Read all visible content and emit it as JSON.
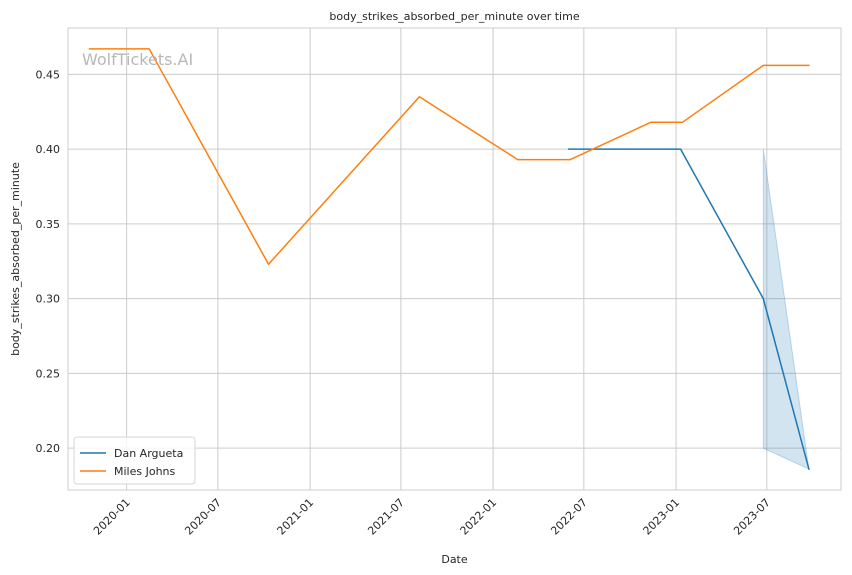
{
  "chart_data": {
    "type": "line",
    "title": "body_strikes_absorbed_per_minute over time",
    "xlabel": "Date",
    "ylabel": "body_strikes_absorbed_per_minute",
    "watermark": "WolfTickets.AI",
    "xlim": [
      "2019-09-06",
      "2023-11-26"
    ],
    "ylim": [
      0.172,
      0.481
    ],
    "x_ticks": [
      "2020-01",
      "2020-07",
      "2021-01",
      "2021-07",
      "2022-01",
      "2022-07",
      "2023-01",
      "2023-07"
    ],
    "y_ticks": [
      0.2,
      0.25,
      0.3,
      0.35,
      0.4,
      0.45
    ],
    "y_tick_labels": [
      "0.20",
      "0.25",
      "0.30",
      "0.35",
      "0.40",
      "0.45"
    ],
    "grid": true,
    "legend_position": "lower-left",
    "series": [
      {
        "name": "Dan Argueta",
        "color": "#1f77b4",
        "points": [
          {
            "x": "2022-06-01",
            "y": 0.4
          },
          {
            "x": "2023-01-10",
            "y": 0.4
          },
          {
            "x": "2023-06-24",
            "y": 0.3
          },
          {
            "x": "2023-09-23",
            "y": 0.186
          }
        ],
        "band": [
          {
            "x": "2023-06-24",
            "low": 0.2,
            "high": 0.4
          },
          {
            "x": "2023-09-23",
            "low": 0.186,
            "high": 0.186
          }
        ]
      },
      {
        "name": "Miles Johns",
        "color": "#ff7f0e",
        "points": [
          {
            "x": "2019-10-19",
            "y": 0.467
          },
          {
            "x": "2020-02-15",
            "y": 0.467
          },
          {
            "x": "2020-10-10",
            "y": 0.323
          },
          {
            "x": "2021-08-07",
            "y": 0.435
          },
          {
            "x": "2022-02-19",
            "y": 0.393
          },
          {
            "x": "2022-06-04",
            "y": 0.393
          },
          {
            "x": "2022-11-12",
            "y": 0.418
          },
          {
            "x": "2023-01-14",
            "y": 0.418
          },
          {
            "x": "2023-06-24",
            "y": 0.456
          },
          {
            "x": "2023-09-23",
            "y": 0.456
          }
        ]
      }
    ]
  }
}
